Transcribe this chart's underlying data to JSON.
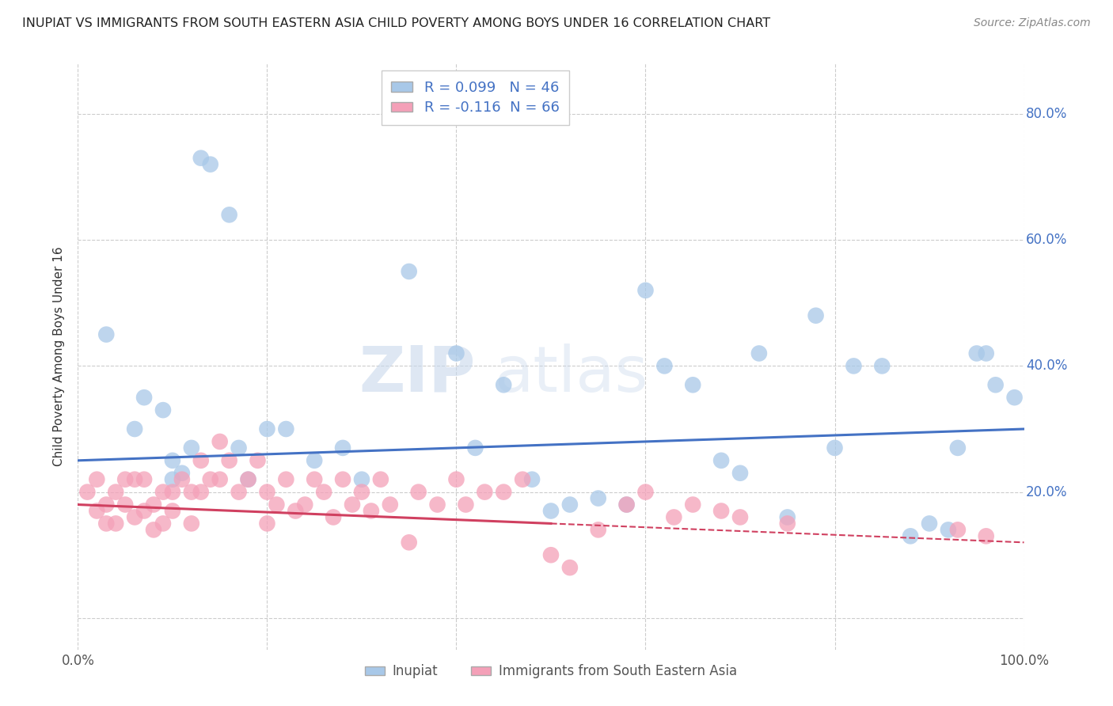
{
  "title": "INUPIAT VS IMMIGRANTS FROM SOUTH EASTERN ASIA CHILD POVERTY AMONG BOYS UNDER 16 CORRELATION CHART",
  "source": "Source: ZipAtlas.com",
  "ylabel": "Child Poverty Among Boys Under 16",
  "xlim": [
    0,
    100
  ],
  "ylim": [
    -5,
    88
  ],
  "xticks": [
    0,
    20,
    40,
    60,
    80,
    100
  ],
  "xticklabels": [
    "0.0%",
    "",
    "",
    "",
    "",
    "100.0%"
  ],
  "ytick_positions": [
    0,
    20,
    40,
    60,
    80
  ],
  "ytick_right_labels": [
    "",
    "20.0%",
    "40.0%",
    "60.0%",
    "80.0%"
  ],
  "series1_name": "Inupiat",
  "series1_color": "#a8c8e8",
  "series1_R": 0.099,
  "series1_N": 46,
  "series1_x": [
    3,
    6,
    7,
    9,
    10,
    10,
    11,
    12,
    13,
    14,
    16,
    17,
    18,
    20,
    22,
    25,
    28,
    30,
    35,
    40,
    42,
    45,
    48,
    50,
    52,
    55,
    58,
    60,
    62,
    65,
    68,
    70,
    72,
    75,
    78,
    80,
    82,
    85,
    88,
    90,
    92,
    93,
    95,
    96,
    97,
    99
  ],
  "series1_y": [
    45,
    30,
    35,
    33,
    25,
    22,
    23,
    27,
    73,
    72,
    64,
    27,
    22,
    30,
    30,
    25,
    27,
    22,
    55,
    42,
    27,
    37,
    22,
    17,
    18,
    19,
    18,
    52,
    40,
    37,
    25,
    23,
    42,
    16,
    48,
    27,
    40,
    40,
    13,
    15,
    14,
    27,
    42,
    42,
    37,
    35
  ],
  "series2_name": "Immigrants from South Eastern Asia",
  "series2_color": "#f4a0b8",
  "series2_R": -0.116,
  "series2_N": 66,
  "series2_x": [
    1,
    2,
    2,
    3,
    3,
    4,
    4,
    5,
    5,
    6,
    6,
    7,
    7,
    8,
    8,
    9,
    9,
    10,
    10,
    11,
    12,
    12,
    13,
    13,
    14,
    15,
    15,
    16,
    17,
    18,
    19,
    20,
    20,
    21,
    22,
    23,
    24,
    25,
    26,
    27,
    28,
    29,
    30,
    31,
    32,
    33,
    35,
    36,
    38,
    40,
    41,
    43,
    45,
    47,
    50,
    52,
    55,
    58,
    60,
    63,
    65,
    68,
    70,
    75,
    93,
    96
  ],
  "series2_y": [
    20,
    22,
    17,
    18,
    15,
    20,
    15,
    22,
    18,
    16,
    22,
    17,
    22,
    18,
    14,
    20,
    15,
    20,
    17,
    22,
    20,
    15,
    25,
    20,
    22,
    28,
    22,
    25,
    20,
    22,
    25,
    20,
    15,
    18,
    22,
    17,
    18,
    22,
    20,
    16,
    22,
    18,
    20,
    17,
    22,
    18,
    12,
    20,
    18,
    22,
    18,
    20,
    20,
    22,
    10,
    8,
    14,
    18,
    20,
    16,
    18,
    17,
    16,
    15,
    14,
    13
  ],
  "trend1_color": "#4472c4",
  "trend1_x0": 0,
  "trend1_y0": 25,
  "trend1_x1": 100,
  "trend1_y1": 30,
  "trend2_solid_x0": 0,
  "trend2_solid_y0": 18,
  "trend2_solid_x1": 50,
  "trend2_solid_y1": 15,
  "trend2_dash_x0": 50,
  "trend2_dash_y0": 15,
  "trend2_dash_x1": 100,
  "trend2_dash_y1": 12,
  "trend2_color": "#d04060",
  "watermark_zip": "ZIP",
  "watermark_atlas": "atlas",
  "background_color": "#ffffff",
  "grid_color": "#cccccc"
}
